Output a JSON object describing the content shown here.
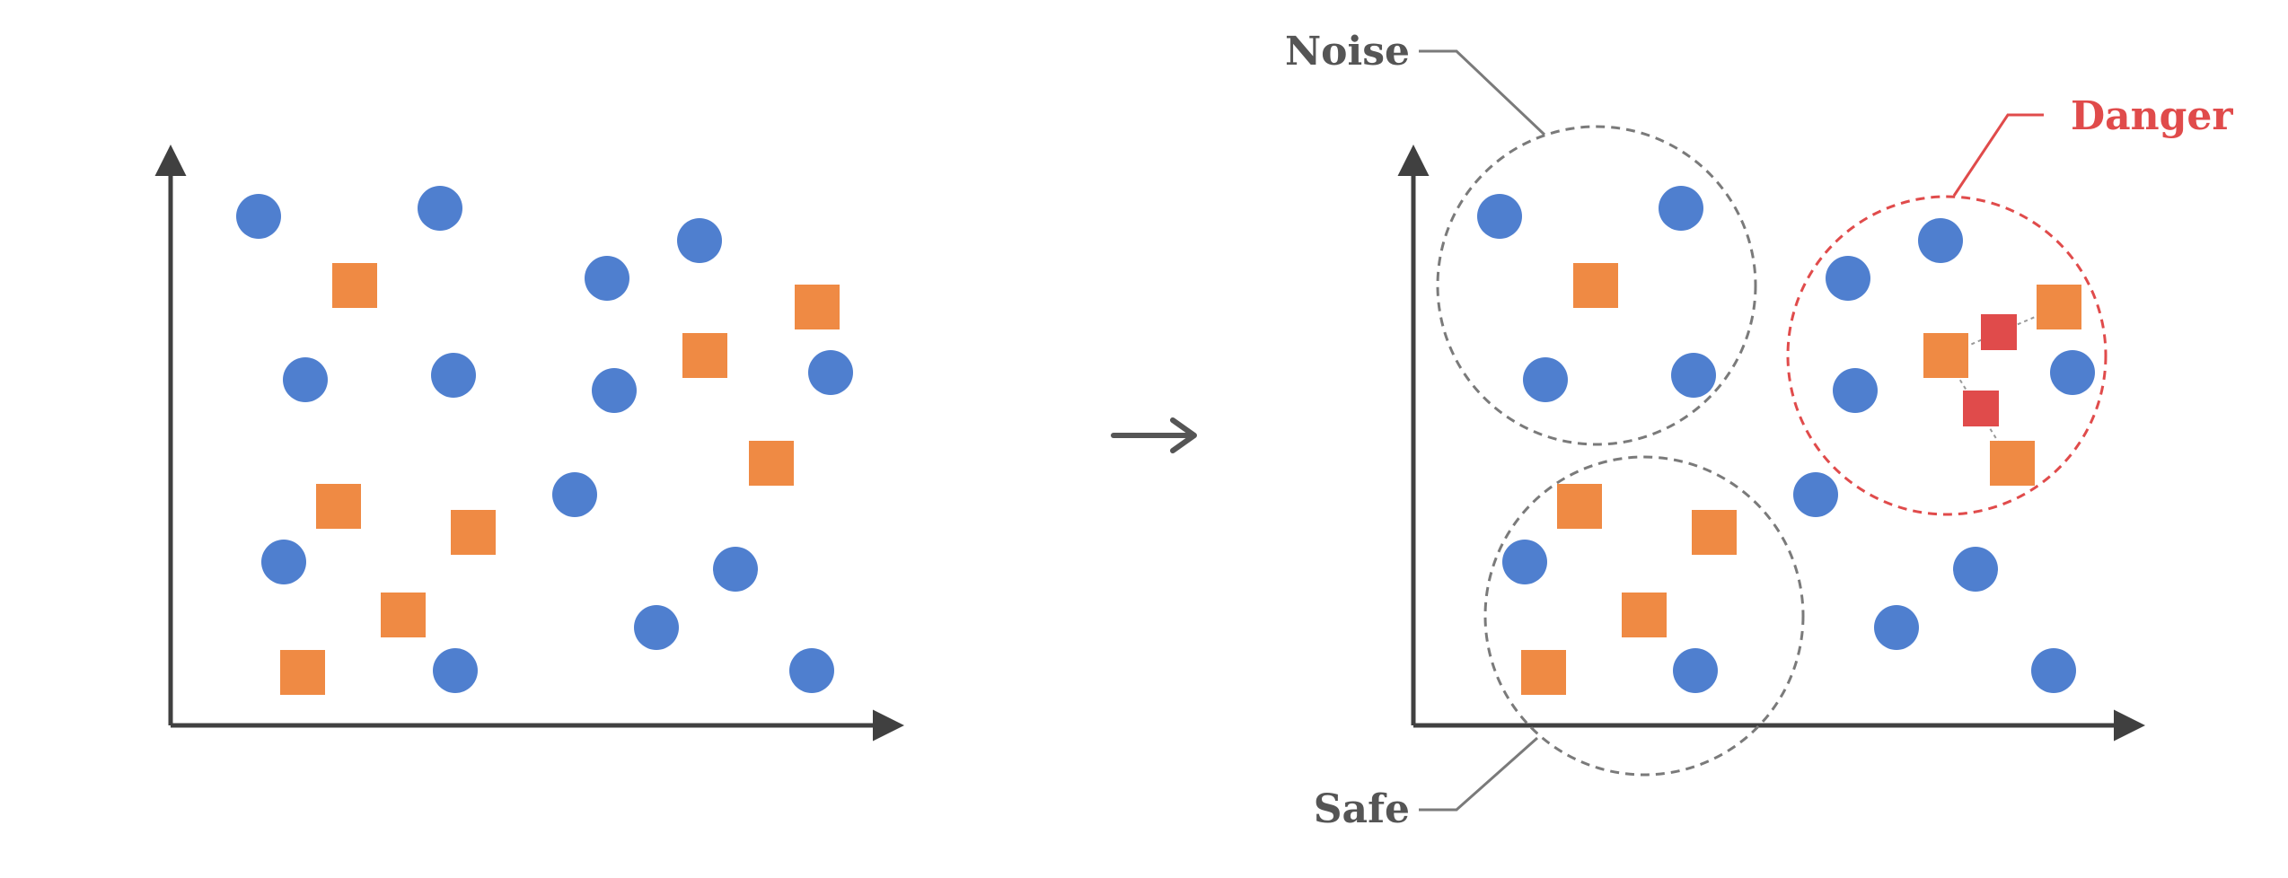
{
  "colors": {
    "axis": "#404040",
    "circle": "#4f7fcf",
    "square": "#ef8a44",
    "synthetic": "#e04b4b",
    "noise_ring": "#7a7a7a",
    "safe_ring": "#7a7a7a",
    "danger_ring": "#e04b4b",
    "noise_label": "#555555",
    "safe_label": "#555555",
    "danger_label": "#e04b4b",
    "arrow": "#555555"
  },
  "labels": {
    "noise": "Noise",
    "safe": "Safe",
    "danger": "Danger"
  },
  "icons": {
    "arrow": "right-arrow-icon"
  }
}
